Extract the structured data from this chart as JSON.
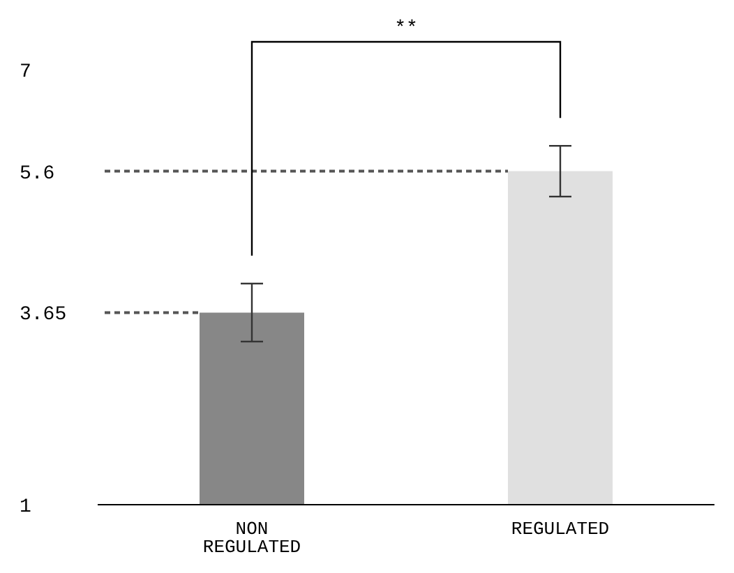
{
  "chart_data": {
    "type": "bar",
    "categories": [
      "NON REGULATED",
      "REGULATED"
    ],
    "values": [
      3.65,
      5.6
    ],
    "colors": [
      "#878787",
      "#e0e0e0"
    ],
    "errors": [
      0.4,
      0.35
    ],
    "ylim": [
      1,
      7
    ],
    "yticks": [
      1,
      3.65,
      5.6,
      7
    ],
    "ref_lines": [
      {
        "axis": "y",
        "value": 3.65,
        "color": "#555555",
        "line_style": "dashed"
      },
      {
        "axis": "y",
        "value": 5.6,
        "color": "#555555",
        "line_style": "dashed"
      }
    ],
    "annotations": [
      "**"
    ]
  }
}
